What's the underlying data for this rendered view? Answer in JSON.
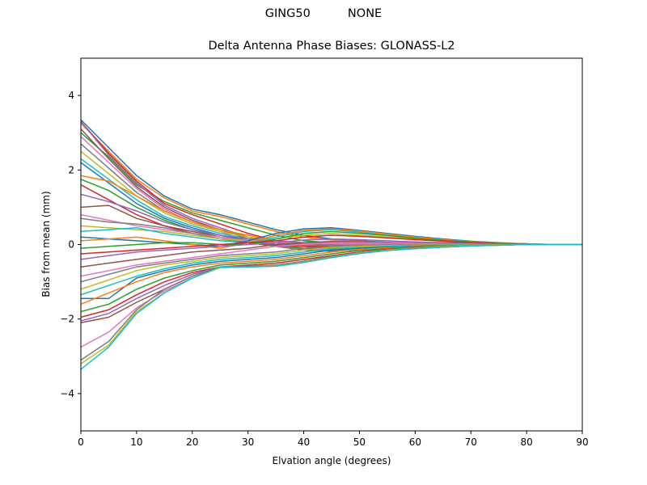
{
  "suptitle": "GING50          NONE",
  "chart_data": {
    "type": "line",
    "title": "Delta Antenna Phase Biases: GLONASS-L2",
    "suptitle": "GING50          NONE",
    "xlabel": "Elvation angle (degrees)",
    "ylabel": "Bias from mean (mm)",
    "xlim": [
      0,
      90
    ],
    "ylim": [
      -5,
      5
    ],
    "xticks": [
      0,
      10,
      20,
      30,
      40,
      50,
      60,
      70,
      80,
      90
    ],
    "yticks": [
      -4,
      -2,
      0,
      2,
      4
    ],
    "ytick_labels": [
      "−4",
      "−2",
      "0",
      "2",
      "4"
    ],
    "grid": false,
    "legend": "none",
    "x": [
      0,
      5,
      10,
      15,
      20,
      25,
      30,
      35,
      40,
      45,
      50,
      55,
      60,
      65,
      70,
      75,
      80,
      85,
      90
    ],
    "colors": [
      "#1f77b4",
      "#ff7f0e",
      "#2ca02c",
      "#d62728",
      "#9467bd",
      "#8c564b",
      "#e377c2",
      "#7f7f7f",
      "#bcbd22",
      "#17becf"
    ],
    "series": [
      {
        "values": [
          3.35,
          2.6,
          1.85,
          1.3,
          0.95,
          0.8,
          0.6,
          0.4,
          0.25,
          0.15,
          0.1,
          0.06,
          0.04,
          0.03,
          0.02,
          0.01,
          0.0,
          0.0,
          0.0
        ]
      },
      {
        "values": [
          3.25,
          2.5,
          1.75,
          1.25,
          0.9,
          0.75,
          0.55,
          0.35,
          0.2,
          0.12,
          0.08,
          0.05,
          0.03,
          0.02,
          0.01,
          0.01,
          0.0,
          0.0,
          0.0
        ]
      },
      {
        "values": [
          3.0,
          2.35,
          1.6,
          1.15,
          0.85,
          0.65,
          0.45,
          0.25,
          0.1,
          0.05,
          0.03,
          0.02,
          0.01,
          0.01,
          0.0,
          0.0,
          0.0,
          0.0,
          0.0
        ]
      },
      {
        "values": [
          3.3,
          2.45,
          1.7,
          1.1,
          0.8,
          0.55,
          0.3,
          0.1,
          -0.05,
          -0.1,
          -0.1,
          -0.08,
          -0.06,
          -0.04,
          -0.02,
          -0.01,
          0.0,
          0.0,
          0.0
        ]
      },
      {
        "values": [
          3.3,
          2.4,
          1.65,
          1.05,
          0.7,
          0.45,
          0.2,
          0.0,
          -0.1,
          -0.15,
          -0.12,
          -0.1,
          -0.07,
          -0.05,
          -0.03,
          -0.01,
          0.0,
          0.0,
          0.0
        ]
      },
      {
        "values": [
          3.1,
          2.3,
          1.55,
          1.0,
          0.65,
          0.4,
          0.15,
          -0.05,
          -0.15,
          -0.18,
          -0.15,
          -0.12,
          -0.08,
          -0.05,
          -0.03,
          -0.01,
          0.0,
          0.0,
          0.0
        ]
      },
      {
        "values": [
          2.9,
          2.2,
          1.5,
          0.95,
          0.6,
          0.35,
          0.1,
          -0.05,
          -0.12,
          -0.15,
          -0.13,
          -0.1,
          -0.07,
          -0.05,
          -0.03,
          -0.01,
          0.0,
          0.0,
          0.0
        ]
      },
      {
        "values": [
          2.7,
          2.05,
          1.4,
          0.9,
          0.6,
          0.4,
          0.2,
          0.05,
          -0.05,
          -0.08,
          -0.08,
          -0.06,
          -0.05,
          -0.03,
          -0.02,
          -0.01,
          0.0,
          0.0,
          0.0
        ]
      },
      {
        "values": [
          2.5,
          1.9,
          1.3,
          0.85,
          0.55,
          0.35,
          0.2,
          0.1,
          0.05,
          0.02,
          0.01,
          0.0,
          0.0,
          0.0,
          0.0,
          0.0,
          0.0,
          0.0,
          0.0
        ]
      },
      {
        "values": [
          2.3,
          1.75,
          1.2,
          0.75,
          0.5,
          0.3,
          0.15,
          0.05,
          0.0,
          -0.02,
          -0.03,
          -0.03,
          -0.02,
          -0.02,
          -0.01,
          0.0,
          0.0,
          0.0,
          0.0
        ]
      },
      {
        "values": [
          2.2,
          1.65,
          1.1,
          0.7,
          0.45,
          0.25,
          0.1,
          0.0,
          -0.05,
          -0.06,
          -0.05,
          -0.04,
          -0.03,
          -0.02,
          -0.01,
          0.0,
          0.0,
          0.0,
          0.0
        ]
      },
      {
        "values": [
          1.85,
          1.7,
          1.3,
          0.9,
          0.6,
          0.4,
          0.25,
          0.1,
          0.0,
          -0.05,
          -0.05,
          -0.04,
          -0.03,
          -0.02,
          -0.01,
          0.0,
          0.0,
          0.0,
          0.0
        ]
      },
      {
        "values": [
          1.75,
          1.45,
          1.0,
          0.65,
          0.4,
          0.2,
          0.05,
          -0.05,
          -0.1,
          -0.1,
          -0.08,
          -0.06,
          -0.04,
          -0.03,
          -0.02,
          -0.01,
          0.0,
          0.0,
          0.0
        ]
      },
      {
        "values": [
          1.6,
          1.2,
          0.8,
          0.5,
          0.3,
          0.15,
          0.05,
          -0.02,
          -0.05,
          -0.05,
          -0.04,
          -0.03,
          -0.02,
          -0.01,
          0.0,
          0.0,
          0.0,
          0.0,
          0.0
        ]
      },
      {
        "values": [
          1.35,
          1.15,
          0.9,
          0.6,
          0.4,
          0.25,
          0.15,
          0.1,
          0.05,
          0.04,
          0.03,
          0.02,
          0.02,
          0.01,
          0.01,
          0.0,
          0.0,
          0.0,
          0.0
        ]
      },
      {
        "values": [
          1.0,
          1.05,
          0.7,
          0.5,
          0.35,
          0.2,
          0.1,
          0.05,
          0.02,
          0.0,
          0.0,
          0.0,
          0.0,
          0.0,
          0.0,
          0.0,
          0.0,
          0.0,
          0.0
        ]
      },
      {
        "values": [
          0.8,
          0.65,
          0.5,
          0.4,
          0.3,
          0.2,
          0.1,
          0.05,
          0.03,
          0.02,
          0.01,
          0.0,
          0.0,
          0.0,
          0.0,
          0.0,
          0.0,
          0.0,
          0.0
        ]
      },
      {
        "values": [
          0.7,
          0.6,
          0.55,
          0.45,
          0.3,
          0.15,
          0.05,
          0.0,
          -0.02,
          -0.02,
          -0.02,
          -0.01,
          -0.01,
          0.0,
          0.0,
          0.0,
          0.0,
          0.0,
          0.0
        ]
      },
      {
        "values": [
          0.5,
          0.45,
          0.4,
          0.35,
          0.25,
          0.15,
          0.1,
          0.15,
          0.25,
          0.3,
          0.25,
          0.2,
          0.15,
          0.1,
          0.06,
          0.03,
          0.01,
          0.0,
          0.0
        ]
      },
      {
        "values": [
          0.35,
          0.4,
          0.45,
          0.3,
          0.2,
          0.1,
          0.05,
          0.2,
          0.35,
          0.4,
          0.33,
          0.25,
          0.18,
          0.12,
          0.07,
          0.04,
          0.02,
          0.0,
          0.0
        ]
      },
      {
        "values": [
          0.2,
          0.15,
          0.1,
          0.05,
          0.0,
          -0.05,
          0.1,
          0.3,
          0.42,
          0.45,
          0.38,
          0.3,
          0.22,
          0.15,
          0.09,
          0.05,
          0.02,
          0.0,
          0.0
        ]
      },
      {
        "values": [
          0.1,
          0.15,
          0.2,
          0.1,
          0.0,
          -0.1,
          0.05,
          0.25,
          0.38,
          0.42,
          0.36,
          0.28,
          0.2,
          0.13,
          0.08,
          0.04,
          0.02,
          0.0,
          0.0
        ]
      },
      {
        "values": [
          -0.1,
          -0.05,
          0.0,
          0.05,
          0.05,
          0.0,
          0.0,
          0.15,
          0.3,
          0.35,
          0.3,
          0.24,
          0.17,
          0.11,
          0.07,
          0.03,
          0.01,
          0.0,
          0.0
        ]
      },
      {
        "values": [
          -0.25,
          -0.2,
          -0.15,
          -0.1,
          -0.05,
          0.0,
          0.05,
          0.1,
          0.2,
          0.25,
          0.22,
          0.18,
          0.13,
          0.09,
          0.05,
          0.02,
          0.01,
          0.0,
          0.0
        ]
      },
      {
        "values": [
          -0.4,
          -0.3,
          -0.2,
          -0.15,
          -0.1,
          -0.05,
          0.0,
          0.05,
          0.12,
          0.15,
          0.13,
          0.1,
          0.07,
          0.05,
          0.03,
          0.01,
          0.0,
          0.0,
          0.0
        ]
      },
      {
        "values": [
          -0.6,
          -0.5,
          -0.4,
          -0.3,
          -0.2,
          -0.15,
          -0.1,
          0.0,
          0.05,
          0.08,
          0.07,
          0.05,
          0.04,
          0.03,
          0.02,
          0.01,
          0.0,
          0.0,
          0.0
        ]
      },
      {
        "values": [
          -0.85,
          -0.7,
          -0.55,
          -0.45,
          -0.35,
          -0.25,
          -0.15,
          -0.05,
          0.0,
          0.05,
          0.05,
          0.04,
          0.03,
          0.02,
          0.01,
          0.0,
          0.0,
          0.0,
          0.0
        ]
      },
      {
        "values": [
          -1.0,
          -0.8,
          -0.6,
          -0.5,
          -0.4,
          -0.3,
          -0.25,
          -0.2,
          -0.1,
          -0.05,
          -0.03,
          -0.02,
          -0.01,
          0.0,
          0.0,
          0.0,
          0.0,
          0.0,
          0.0
        ]
      },
      {
        "values": [
          -1.2,
          -0.95,
          -0.7,
          -0.55,
          -0.45,
          -0.35,
          -0.3,
          -0.25,
          -0.15,
          -0.08,
          -0.05,
          -0.03,
          -0.02,
          -0.01,
          0.0,
          0.0,
          0.0,
          0.0,
          0.0
        ]
      },
      {
        "values": [
          -1.35,
          -1.1,
          -0.85,
          -0.65,
          -0.5,
          -0.4,
          -0.35,
          -0.3,
          -0.2,
          -0.12,
          -0.08,
          -0.05,
          -0.03,
          -0.02,
          -0.01,
          0.0,
          0.0,
          0.0,
          0.0
        ]
      },
      {
        "values": [
          -1.45,
          -1.45,
          -0.9,
          -0.7,
          -0.55,
          -0.45,
          -0.4,
          -0.35,
          -0.25,
          -0.15,
          -0.1,
          -0.07,
          -0.05,
          -0.03,
          -0.02,
          -0.01,
          0.0,
          0.0,
          0.0
        ]
      },
      {
        "values": [
          -1.6,
          -1.3,
          -1.0,
          -0.75,
          -0.6,
          -0.5,
          -0.45,
          -0.4,
          -0.3,
          -0.2,
          -0.13,
          -0.09,
          -0.06,
          -0.04,
          -0.02,
          -0.01,
          0.0,
          0.0,
          0.0
        ]
      },
      {
        "values": [
          -1.8,
          -1.6,
          -1.2,
          -0.9,
          -0.7,
          -0.55,
          -0.5,
          -0.45,
          -0.35,
          -0.25,
          -0.16,
          -0.11,
          -0.07,
          -0.05,
          -0.03,
          -0.01,
          0.0,
          0.0,
          0.0
        ]
      },
      {
        "values": [
          -1.95,
          -1.75,
          -1.35,
          -1.0,
          -0.75,
          -0.6,
          -0.55,
          -0.5,
          -0.4,
          -0.3,
          -0.2,
          -0.13,
          -0.09,
          -0.06,
          -0.03,
          -0.01,
          0.0,
          0.0,
          0.0
        ]
      },
      {
        "values": [
          -2.05,
          -1.85,
          -1.45,
          -1.1,
          -0.8,
          -0.6,
          -0.58,
          -0.55,
          -0.45,
          -0.32,
          -0.22,
          -0.15,
          -0.1,
          -0.06,
          -0.03,
          -0.01,
          0.0,
          0.0,
          0.0
        ]
      },
      {
        "values": [
          -2.1,
          -1.95,
          -1.55,
          -1.2,
          -0.85,
          -0.6,
          -0.6,
          -0.58,
          -0.48,
          -0.35,
          -0.24,
          -0.16,
          -0.11,
          -0.07,
          -0.04,
          -0.02,
          0.0,
          0.0,
          0.0
        ]
      },
      {
        "values": [
          -2.75,
          -2.35,
          -1.7,
          -1.25,
          -0.9,
          -0.62,
          -0.6,
          -0.55,
          -0.45,
          -0.33,
          -0.22,
          -0.15,
          -0.1,
          -0.06,
          -0.03,
          -0.01,
          0.0,
          0.0,
          0.0
        ]
      },
      {
        "values": [
          -3.1,
          -2.6,
          -1.75,
          -1.2,
          -0.85,
          -0.6,
          -0.58,
          -0.55,
          -0.45,
          -0.32,
          -0.22,
          -0.15,
          -0.1,
          -0.06,
          -0.03,
          -0.01,
          0.0,
          0.0,
          0.0
        ]
      },
      {
        "values": [
          -3.2,
          -2.7,
          -1.8,
          -1.3,
          -0.9,
          -0.62,
          -0.6,
          -0.57,
          -0.47,
          -0.34,
          -0.23,
          -0.15,
          -0.1,
          -0.06,
          -0.03,
          -0.01,
          0.0,
          0.0,
          0.0
        ]
      },
      {
        "values": [
          -3.35,
          -2.75,
          -1.85,
          -1.3,
          -0.9,
          -0.6,
          -0.6,
          -0.58,
          -0.48,
          -0.35,
          -0.24,
          -0.16,
          -0.11,
          -0.07,
          -0.04,
          -0.02,
          0.0,
          0.0,
          0.0
        ]
      }
    ]
  }
}
